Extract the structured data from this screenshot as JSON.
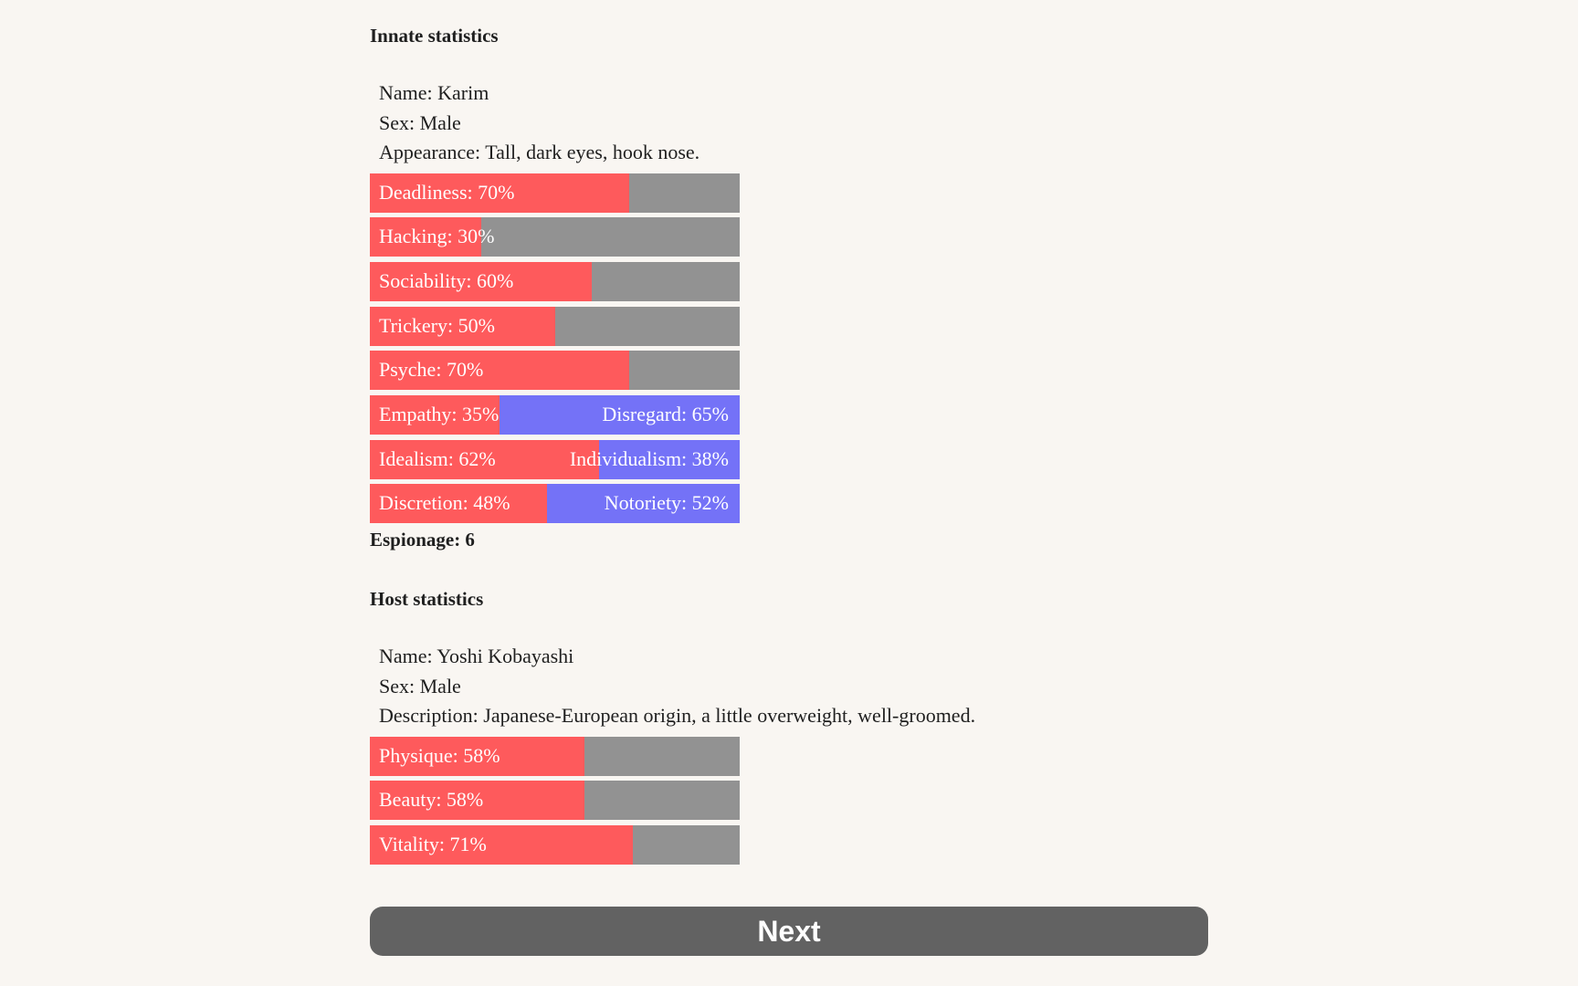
{
  "innate": {
    "title": "Innate statistics",
    "name": "Name: Karim",
    "sex": "Sex: Male",
    "appearance": "Appearance: Tall, dark eyes, hook nose.",
    "bars": [
      {
        "label": "Deadliness: 70%",
        "value": 70
      },
      {
        "label": "Hacking: 30%",
        "value": 30
      },
      {
        "label": "Sociability: 60%",
        "value": 60
      },
      {
        "label": "Trickery: 50%",
        "value": 50
      },
      {
        "label": "Psyche: 70%",
        "value": 70
      }
    ],
    "dual_bars": [
      {
        "left_label": "Empathy: 35%",
        "right_label": "Disregard: 65%",
        "value": 35
      },
      {
        "left_label": "Idealism: 62%",
        "right_label": "Individualism: 38%",
        "value": 62
      },
      {
        "left_label": "Discretion: 48%",
        "right_label": "Notoriety: 52%",
        "value": 48
      }
    ],
    "espionage": "Espionage: 6"
  },
  "host": {
    "title": "Host statistics",
    "name": "Name: Yoshi Kobayashi",
    "sex": "Sex: Male",
    "description": "Description: Japanese-European origin, a little overweight, well-groomed.",
    "bars": [
      {
        "label": "Physique: 58%",
        "value": 58
      },
      {
        "label": "Beauty: 58%",
        "value": 58
      },
      {
        "label": "Vitality: 71%",
        "value": 71
      }
    ]
  },
  "next_button": {
    "label": "Next"
  },
  "colors": {
    "fill_red": "#fe5a5c",
    "track_gray": "#929292",
    "counter_blue": "#7472f7",
    "button_gray": "#626262",
    "background": "#f9f6f2"
  }
}
